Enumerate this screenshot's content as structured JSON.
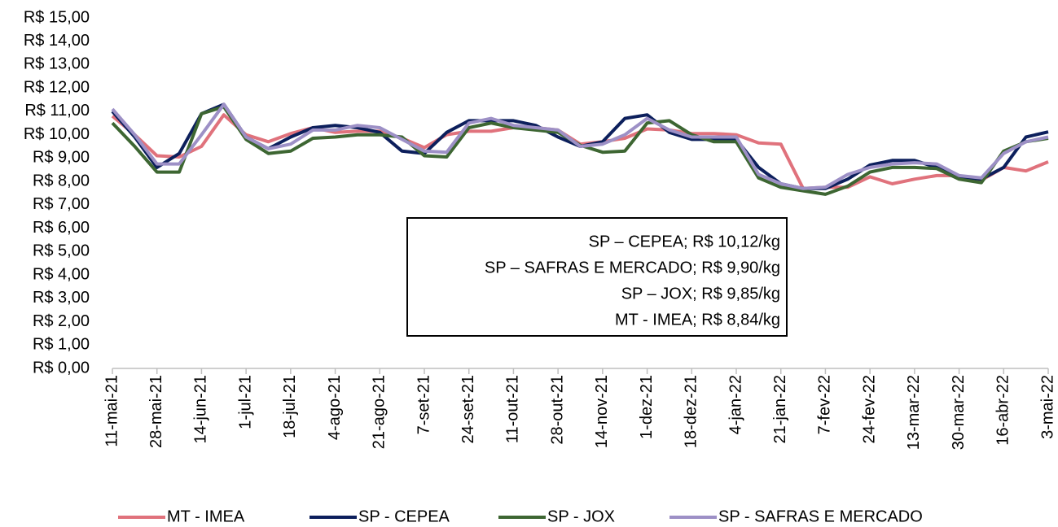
{
  "chart_data": {
    "type": "line",
    "categories": [
      "11-mai-21",
      null,
      "28-mai-21",
      null,
      "14-jun-21",
      null,
      "1-jul-21",
      null,
      "18-jul-21",
      null,
      "4-ago-21",
      null,
      "21-ago-21",
      null,
      "7-set-21",
      null,
      "24-set-21",
      null,
      "11-out-21",
      null,
      "28-out-21",
      null,
      "14-nov-21",
      null,
      "1-dez-21",
      null,
      "18-dez-21",
      null,
      "4-jan-22",
      null,
      "21-jan-22",
      null,
      "7-fev-22",
      null,
      "24-fev-22",
      null,
      "13-mar-22",
      null,
      "30-mar-22",
      null,
      "16-abr-22",
      null,
      "3-mai-22"
    ],
    "series": [
      {
        "name": "MT - IMEA",
        "color": "#e0727c",
        "values": [
          10.8,
          10.0,
          9.1,
          9.05,
          9.5,
          10.85,
          10.0,
          9.7,
          10.05,
          10.3,
          10.1,
          10.15,
          10.15,
          9.85,
          9.45,
          10.0,
          10.15,
          10.15,
          10.3,
          10.3,
          10.2,
          9.6,
          9.7,
          9.85,
          10.25,
          10.2,
          10.05,
          10.05,
          10.0,
          9.65,
          9.6,
          7.7,
          7.75,
          7.75,
          8.2,
          7.9,
          8.1,
          8.25,
          8.25,
          8.05,
          8.6,
          8.45,
          8.84
        ]
      },
      {
        "name": "SP - CEPEA",
        "color": "#0c1f5c",
        "values": [
          11.0,
          9.9,
          8.6,
          9.2,
          10.9,
          11.3,
          9.9,
          9.4,
          9.9,
          10.3,
          10.4,
          10.3,
          10.1,
          9.3,
          9.2,
          10.1,
          10.6,
          10.6,
          10.6,
          10.4,
          9.9,
          9.5,
          9.7,
          10.7,
          10.85,
          10.1,
          9.8,
          9.8,
          9.8,
          8.6,
          7.9,
          7.7,
          7.7,
          8.1,
          8.7,
          8.9,
          8.9,
          8.6,
          8.2,
          8.1,
          8.6,
          9.9,
          10.12
        ]
      },
      {
        "name": "SP - JOX",
        "color": "#3d6632",
        "values": [
          10.5,
          9.5,
          8.4,
          8.4,
          10.9,
          11.2,
          9.8,
          9.2,
          9.3,
          9.85,
          9.9,
          10.0,
          10.0,
          9.9,
          9.1,
          9.05,
          10.3,
          10.5,
          10.3,
          10.2,
          10.1,
          9.55,
          9.25,
          9.3,
          10.5,
          10.6,
          10.0,
          9.7,
          9.7,
          8.15,
          7.75,
          7.6,
          7.45,
          7.8,
          8.4,
          8.6,
          8.6,
          8.55,
          8.1,
          7.95,
          9.3,
          9.7,
          9.85
        ]
      },
      {
        "name": "SP - SAFRAS E MERCADO",
        "color": "#9d90c6",
        "values": [
          11.1,
          10.0,
          8.75,
          8.75,
          10.0,
          11.3,
          9.9,
          9.4,
          9.6,
          10.2,
          10.2,
          10.4,
          10.3,
          9.8,
          9.3,
          9.25,
          10.5,
          10.7,
          10.4,
          10.3,
          10.2,
          9.5,
          9.6,
          10.0,
          10.7,
          10.2,
          9.9,
          9.9,
          9.9,
          8.3,
          7.9,
          7.7,
          7.75,
          8.3,
          8.6,
          8.75,
          8.8,
          8.75,
          8.25,
          8.15,
          9.2,
          9.7,
          9.9
        ]
      }
    ],
    "ylim": [
      0,
      15
    ],
    "yticks": [
      {
        "value": 0,
        "label": "R$ 0,00"
      },
      {
        "value": 1,
        "label": "R$ 1,00"
      },
      {
        "value": 2,
        "label": "R$ 2,00"
      },
      {
        "value": 3,
        "label": "R$ 3,00"
      },
      {
        "value": 4,
        "label": "R$ 4,00"
      },
      {
        "value": 5,
        "label": "R$ 5,00"
      },
      {
        "value": 6,
        "label": "R$ 6,00"
      },
      {
        "value": 7,
        "label": "R$ 7,00"
      },
      {
        "value": 8,
        "label": "R$ 8,00"
      },
      {
        "value": 9,
        "label": "R$ 9,00"
      },
      {
        "value": 10,
        "label": "R$ 10,00"
      },
      {
        "value": 11,
        "label": "R$ 11,00"
      },
      {
        "value": 12,
        "label": "R$ 12,00"
      },
      {
        "value": 13,
        "label": "R$ 13,00"
      },
      {
        "value": 14,
        "label": "R$ 14,00"
      },
      {
        "value": 15,
        "label": "R$ 15,00"
      }
    ],
    "grid": false,
    "legend": "bottom",
    "annotations": [
      "SP – CEPEA; R$ 10,12/kg",
      "SP – SAFRAS E MERCADO; R$ 9,90/kg",
      "SP – JOX; R$ 9,85/kg",
      "MT - IMEA; R$ 8,84/kg"
    ]
  }
}
